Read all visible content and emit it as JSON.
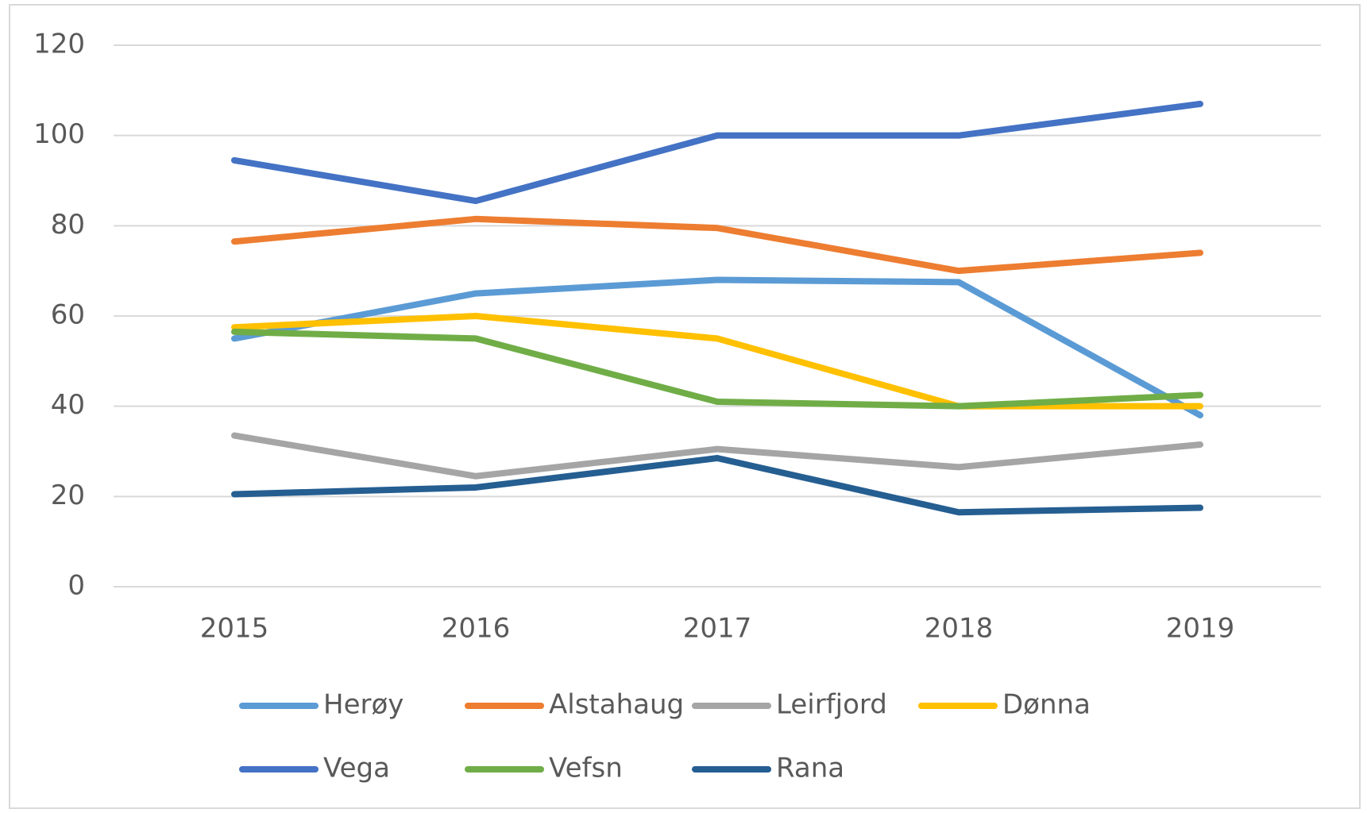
{
  "chart_data": {
    "type": "line",
    "categories": [
      "2015",
      "2016",
      "2017",
      "2018",
      "2019"
    ],
    "series": [
      {
        "name": "Herøy",
        "color": "#5b9bd5",
        "values": [
          55,
          65,
          68,
          67.5,
          38
        ]
      },
      {
        "name": "Alstahaug",
        "color": "#ed7d31",
        "values": [
          76.5,
          81.5,
          79.5,
          70,
          74
        ]
      },
      {
        "name": "Leirfjord",
        "color": "#a5a5a5",
        "values": [
          33.5,
          24.5,
          30.5,
          26.5,
          31.5
        ]
      },
      {
        "name": "Dønna",
        "color": "#ffc000",
        "values": [
          57.5,
          60,
          55,
          40,
          40
        ]
      },
      {
        "name": "Vega",
        "color": "#4472c4",
        "values": [
          94.5,
          85.5,
          100,
          100,
          107
        ]
      },
      {
        "name": "Vefsn",
        "color": "#70ad47",
        "values": [
          56.5,
          55,
          41,
          40,
          42.5
        ]
      },
      {
        "name": "Rana",
        "color": "#255e91",
        "values": [
          20.5,
          22,
          28.5,
          16.5,
          17.5
        ]
      }
    ],
    "ylim": [
      0,
      120
    ],
    "yticks": [
      0,
      20,
      40,
      60,
      80,
      100,
      120
    ],
    "grid": true,
    "legend": "bottom"
  }
}
